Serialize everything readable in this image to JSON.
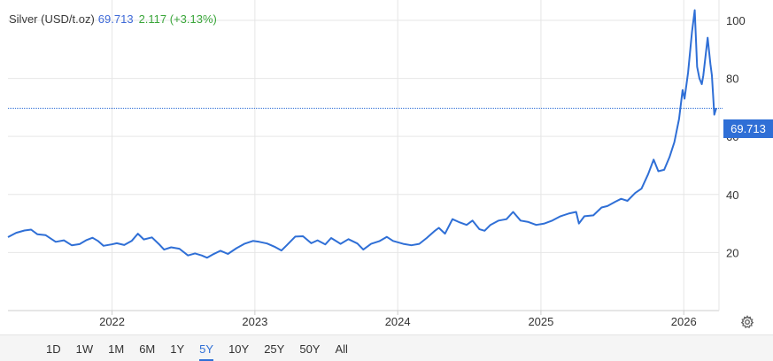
{
  "header": {
    "title": "Silver (USD/t.oz)",
    "last": "69.713",
    "change": "2.117 (+3.13%)"
  },
  "price_tag": "69.713",
  "ranges": [
    {
      "label": "1D",
      "active": false
    },
    {
      "label": "1W",
      "active": false
    },
    {
      "label": "1M",
      "active": false
    },
    {
      "label": "6M",
      "active": false
    },
    {
      "label": "1Y",
      "active": false
    },
    {
      "label": "5Y",
      "active": true
    },
    {
      "label": "10Y",
      "active": false
    },
    {
      "label": "25Y",
      "active": false
    },
    {
      "label": "50Y",
      "active": false
    },
    {
      "label": "All",
      "active": false
    }
  ],
  "settings_icon": "gear-icon",
  "colors": {
    "line": "#2f6fd6",
    "last": "#3f6ad8",
    "change": "#3aa63a",
    "tag": "#2f6fd6"
  },
  "chart_data": {
    "type": "line",
    "title": "Silver (USD/t.oz)",
    "xlabel": "",
    "ylabel": "",
    "xlim": [
      "2021-04-10",
      "2026-04-01"
    ],
    "ylim": [
      0,
      107
    ],
    "y_ticks": [
      20,
      40,
      60,
      80,
      100
    ],
    "x_ticks": [
      "2022",
      "2023",
      "2024",
      "2025",
      "2026"
    ],
    "x_tick_dates": [
      "2022-01-01",
      "2023-01-01",
      "2024-01-01",
      "2025-01-01",
      "2026-01-01"
    ],
    "grid": true,
    "legend": "none",
    "last_value": 69.713,
    "series": [
      {
        "values": [
          [
            "2021-04-10",
            25.3
          ],
          [
            "2021-05-01",
            26.8
          ],
          [
            "2021-05-22",
            27.6
          ],
          [
            "2021-06-08",
            27.9
          ],
          [
            "2021-06-24",
            26.3
          ],
          [
            "2021-07-15",
            26.0
          ],
          [
            "2021-08-10",
            23.7
          ],
          [
            "2021-08-31",
            24.2
          ],
          [
            "2021-09-20",
            22.5
          ],
          [
            "2021-10-10",
            22.9
          ],
          [
            "2021-10-28",
            24.3
          ],
          [
            "2021-11-12",
            25.1
          ],
          [
            "2021-11-26",
            24.0
          ],
          [
            "2021-12-10",
            22.3
          ],
          [
            "2021-12-31",
            22.8
          ],
          [
            "2022-01-13",
            23.2
          ],
          [
            "2022-02-01",
            22.6
          ],
          [
            "2022-02-20",
            24.0
          ],
          [
            "2022-03-08",
            26.5
          ],
          [
            "2022-03-23",
            24.5
          ],
          [
            "2022-04-13",
            25.2
          ],
          [
            "2022-05-03",
            22.6
          ],
          [
            "2022-05-14",
            21.0
          ],
          [
            "2022-06-01",
            21.8
          ],
          [
            "2022-06-22",
            21.3
          ],
          [
            "2022-07-14",
            19.0
          ],
          [
            "2022-08-01",
            19.7
          ],
          [
            "2022-08-18",
            19.0
          ],
          [
            "2022-09-01",
            18.2
          ],
          [
            "2022-09-15",
            19.3
          ],
          [
            "2022-10-05",
            20.6
          ],
          [
            "2022-10-24",
            19.5
          ],
          [
            "2022-11-15",
            21.5
          ],
          [
            "2022-12-05",
            23.0
          ],
          [
            "2022-12-27",
            24.0
          ],
          [
            "2023-01-12",
            23.7
          ],
          [
            "2023-02-01",
            23.1
          ],
          [
            "2023-02-22",
            21.9
          ],
          [
            "2023-03-10",
            20.7
          ],
          [
            "2023-03-24",
            22.6
          ],
          [
            "2023-04-14",
            25.5
          ],
          [
            "2023-05-04",
            25.6
          ],
          [
            "2023-05-25",
            23.2
          ],
          [
            "2023-06-10",
            24.2
          ],
          [
            "2023-06-30",
            22.8
          ],
          [
            "2023-07-15",
            25.0
          ],
          [
            "2023-08-08",
            23.0
          ],
          [
            "2023-08-28",
            24.6
          ],
          [
            "2023-09-20",
            23.1
          ],
          [
            "2023-10-05",
            21.0
          ],
          [
            "2023-10-25",
            23.0
          ],
          [
            "2023-11-15",
            23.9
          ],
          [
            "2023-12-04",
            25.4
          ],
          [
            "2023-12-20",
            24.0
          ],
          [
            "2024-01-15",
            23.0
          ],
          [
            "2024-02-05",
            22.5
          ],
          [
            "2024-02-25",
            23.0
          ],
          [
            "2024-03-15",
            25.0
          ],
          [
            "2024-04-05",
            27.5
          ],
          [
            "2024-04-15",
            28.5
          ],
          [
            "2024-05-01",
            26.5
          ],
          [
            "2024-05-20",
            31.5
          ],
          [
            "2024-06-05",
            30.5
          ],
          [
            "2024-06-25",
            29.5
          ],
          [
            "2024-07-10",
            31.0
          ],
          [
            "2024-07-28",
            28.0
          ],
          [
            "2024-08-10",
            27.5
          ],
          [
            "2024-08-25",
            29.5
          ],
          [
            "2024-09-15",
            31.0
          ],
          [
            "2024-10-05",
            31.5
          ],
          [
            "2024-10-22",
            34.0
          ],
          [
            "2024-11-10",
            31.0
          ],
          [
            "2024-11-30",
            30.5
          ],
          [
            "2024-12-20",
            29.5
          ],
          [
            "2025-01-10",
            30.0
          ],
          [
            "2025-01-30",
            31.0
          ],
          [
            "2025-02-20",
            32.5
          ],
          [
            "2025-03-15",
            33.5
          ],
          [
            "2025-04-01",
            34.0
          ],
          [
            "2025-04-08",
            30.0
          ],
          [
            "2025-04-22",
            32.5
          ],
          [
            "2025-05-15",
            32.8
          ],
          [
            "2025-06-05",
            35.5
          ],
          [
            "2025-06-20",
            36.0
          ],
          [
            "2025-07-10",
            37.5
          ],
          [
            "2025-07-25",
            38.5
          ],
          [
            "2025-08-10",
            37.8
          ],
          [
            "2025-08-30",
            40.5
          ],
          [
            "2025-09-15",
            42.0
          ],
          [
            "2025-10-02",
            47.0
          ],
          [
            "2025-10-16",
            52.0
          ],
          [
            "2025-10-28",
            48.0
          ],
          [
            "2025-11-12",
            48.5
          ],
          [
            "2025-11-26",
            53.0
          ],
          [
            "2025-12-08",
            58.0
          ],
          [
            "2025-12-20",
            66.0
          ],
          [
            "2025-12-29",
            76.0
          ],
          [
            "2026-01-03",
            73.0
          ],
          [
            "2026-01-12",
            82.0
          ],
          [
            "2026-01-22",
            96.0
          ],
          [
            "2026-01-29",
            103.5
          ],
          [
            "2026-02-04",
            84.0
          ],
          [
            "2026-02-10",
            80.0
          ],
          [
            "2026-02-16",
            78.0
          ],
          [
            "2026-02-20",
            81.0
          ],
          [
            "2026-03-03",
            94.0
          ],
          [
            "2026-03-10",
            85.0
          ],
          [
            "2026-03-14",
            81.0
          ],
          [
            "2026-03-20",
            67.5
          ],
          [
            "2026-03-25",
            69.713
          ]
        ]
      }
    ]
  }
}
